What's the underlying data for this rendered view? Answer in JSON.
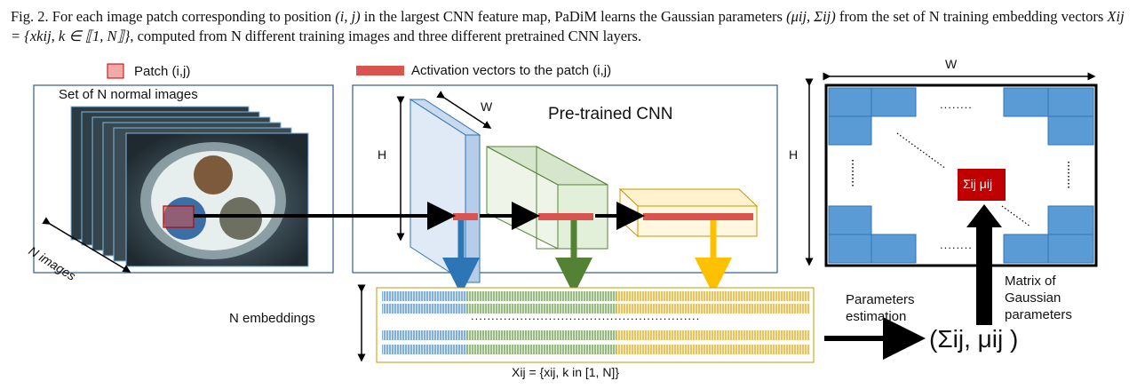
{
  "caption": {
    "prefix": "Fig. 2.",
    "t1": "For each image patch corresponding to position",
    "m1": "(i, j)",
    "t2": "in the largest CNN feature map, PaDiM learns the Gaussian parameters",
    "m2": "(μij, Σij)",
    "t3": "from the",
    "t4": "set of N training embedding vectors",
    "m3": "Xij = {xkij, k ∈ ⟦1, N⟧}",
    "t5": ", computed from N different training images and three different pretrained CNN layers."
  },
  "legend": {
    "patch": "Patch (i,j)",
    "activation": "Activation vectors to the patch (i,j)"
  },
  "images_panel": {
    "title": "Set of N normal images",
    "axis": "N images"
  },
  "cnn_panel": {
    "title": "Pre-trained CNN",
    "h": "H",
    "w": "W"
  },
  "embeddings": {
    "label": "N embeddings",
    "formula": "Xij = {xij, k in [1, N]}",
    "ellipsis": "........................................................"
  },
  "params": {
    "estimation": "Parameters estimation",
    "result": "(Σij, μij )",
    "matrix_label": "Matrix of Gaussian parameters"
  },
  "matrix": {
    "w": "W",
    "h": "H",
    "cell": "Σij μij",
    "dots_h": "........",
    "dots_v": ":"
  },
  "colors": {
    "blue_cell": "#5b9bd5",
    "red_cell": "#c00000",
    "layer1": "#2e75b6",
    "layer2": "#548235",
    "layer3": "#ffc000",
    "panel_border": "#2e5c8a"
  }
}
